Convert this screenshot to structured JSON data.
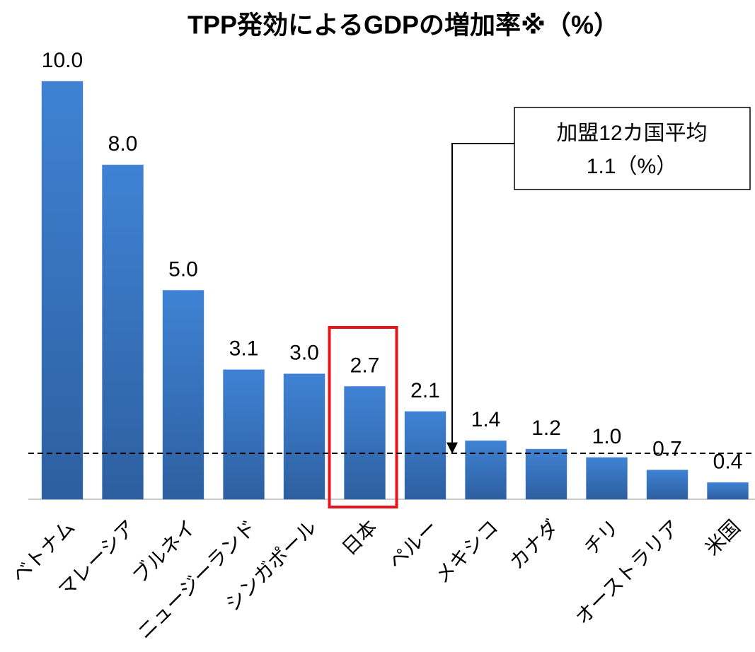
{
  "chart_data": {
    "type": "bar",
    "title": "TPP発効によるGDPの増加率※（%）",
    "categories": [
      "ベトナム",
      "マレーシア",
      "ブルネイ",
      "ニュージーランド",
      "シンガポール",
      "日本",
      "ペルー",
      "メキシコ",
      "カナダ",
      "チリ",
      "オーストラリア",
      "米国"
    ],
    "values": [
      10,
      8,
      5,
      3.1,
      3,
      2.7,
      2.1,
      1.4,
      1.2,
      1,
      0.7,
      0.4
    ],
    "value_labels": [
      "10.0",
      "8.0",
      "5.0",
      "3.1",
      "3.0",
      "2.7",
      "2.1",
      "1.4",
      "1.2",
      "1.0",
      "0.7",
      "0.4"
    ],
    "color": "#3b7bcc",
    "ylim": [
      0,
      10
    ],
    "highlight": "日本",
    "reference_line": {
      "value": 1.1,
      "annotation": [
        "加盟12カ国平均",
        "1.1（%）"
      ]
    }
  }
}
